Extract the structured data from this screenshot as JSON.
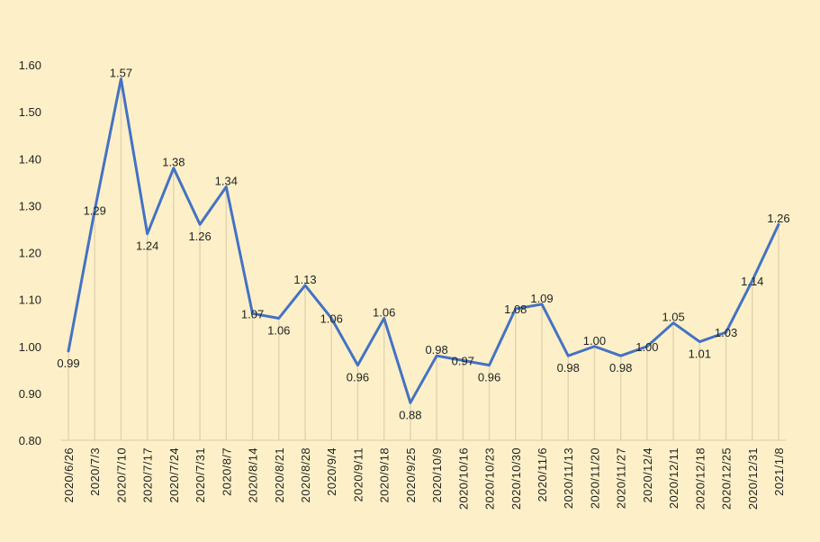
{
  "chart_data": {
    "type": "line",
    "title": "",
    "xlabel": "",
    "ylabel": "",
    "ylim": [
      0.8,
      1.6
    ],
    "yticks": [
      "0.80",
      "0.90",
      "1.00",
      "1.10",
      "1.20",
      "1.30",
      "1.40",
      "1.50",
      "1.60"
    ],
    "grid": false,
    "drop_lines": true,
    "colors": {
      "line": "#4472c4",
      "drop_line": "#e3d5b0",
      "background": "#fdf0c8"
    },
    "categories": [
      "2020/6/26",
      "2020/7/3",
      "2020/7/10",
      "2020/7/17",
      "2020/7/24",
      "2020/7/31",
      "2020/8/7",
      "2020/8/14",
      "2020/8/21",
      "2020/8/28",
      "2020/9/4",
      "2020/9/11",
      "2020/9/18",
      "2020/9/25",
      "2020/10/9",
      "2020/10/16",
      "2020/10/23",
      "2020/10/30",
      "2020/11/6",
      "2020/11/13",
      "2020/11/20",
      "2020/11/27",
      "2020/12/4",
      "2020/12/11",
      "2020/12/18",
      "2020/12/25",
      "2020/12/31",
      "2021/1/8"
    ],
    "values": [
      0.99,
      1.29,
      1.57,
      1.24,
      1.38,
      1.26,
      1.34,
      1.07,
      1.06,
      1.13,
      1.06,
      0.96,
      1.06,
      0.88,
      0.98,
      0.97,
      0.96,
      1.08,
      1.09,
      0.98,
      1.0,
      0.98,
      1.0,
      1.05,
      1.01,
      1.03,
      1.14,
      1.26
    ],
    "labels": [
      "0.99",
      "1.29",
      "1.57",
      "1.24",
      "1.38",
      "1.26",
      "1.34",
      "1.07",
      "1.06",
      "1.13",
      "1.06",
      "0.96",
      "1.06",
      "0.88",
      "0.98",
      "0.97",
      "0.96",
      "1.08",
      "1.09",
      "0.98",
      "1.00",
      "0.98",
      "1.00",
      "1.05",
      "1.01",
      "1.03",
      "1.14",
      "1.26"
    ]
  }
}
